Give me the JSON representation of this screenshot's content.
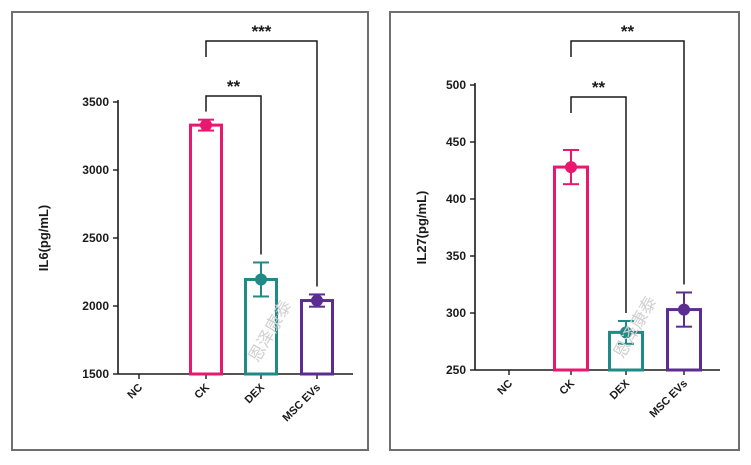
{
  "chart_data": [
    {
      "type": "bar",
      "ylabel": "IL6(pg/mL)",
      "ylim": [
        1500,
        3500
      ],
      "yticks": [
        "1500",
        "2000",
        "2500",
        "3000",
        "3500"
      ],
      "categories": [
        "NC",
        "CK",
        "DEX",
        "MSC EVs"
      ],
      "colors": [
        "#e8186f",
        "#e8186f",
        "#1f8a86",
        "#5b2c91"
      ],
      "values": [
        null,
        3330,
        2195,
        2040
      ],
      "errors": [
        null,
        40,
        125,
        45
      ],
      "significance": [
        {
          "from": "CK",
          "to": "DEX",
          "label": "**"
        },
        {
          "from": "CK",
          "to": "MSC EVs",
          "label": "***"
        }
      ],
      "watermark": "恩泽康泰",
      "grid": false
    },
    {
      "type": "bar",
      "ylabel": "IL27(pg/mL)",
      "ylim": [
        250,
        500
      ],
      "yticks": [
        "250",
        "300",
        "350",
        "400",
        "450",
        "500"
      ],
      "categories": [
        "NC",
        "CK",
        "DEX",
        "MSC EVs"
      ],
      "colors": [
        "#e8186f",
        "#e8186f",
        "#1f8a86",
        "#5b2c91"
      ],
      "values": [
        null,
        428,
        283,
        303
      ],
      "errors": [
        null,
        15,
        10,
        15
      ],
      "significance": [
        {
          "from": "CK",
          "to": "DEX",
          "label": "**"
        },
        {
          "from": "CK",
          "to": "MSC EVs",
          "label": "**"
        }
      ],
      "watermark": "恩泽康泰",
      "grid": false
    }
  ]
}
